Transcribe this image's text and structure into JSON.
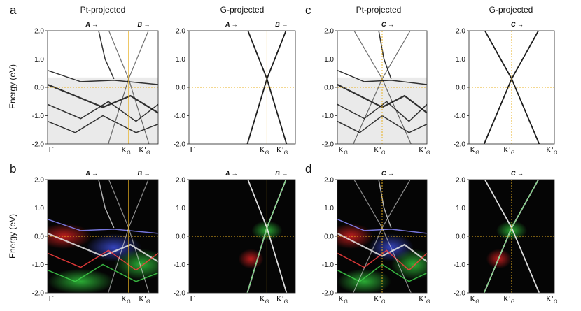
{
  "figure": {
    "rows": [
      {
        "letter_left": "a",
        "letter_right": "c",
        "background": "light"
      },
      {
        "letter_left": "b",
        "letter_right": "d",
        "background": "dark"
      }
    ],
    "column_titles": [
      "Pt-projected",
      "G-projected",
      "Pt-projected",
      "G-projected"
    ],
    "y_axis": {
      "label": "Energy (eV)",
      "ticks": [
        "2.0",
        "1.0",
        "0.0",
        "-1.0",
        "-2.0"
      ],
      "range": [
        -2.0,
        2.0
      ]
    },
    "left_pair": {
      "k_labels": [
        {
          "main": "Γ",
          "sub": ""
        },
        {
          "main": "K",
          "sub": "G"
        },
        {
          "main": "K'",
          "sub": "G"
        }
      ],
      "directions": [
        "A →",
        "B →"
      ]
    },
    "right_pair": {
      "k_labels": [
        {
          "main": "K",
          "sub": "G"
        },
        {
          "main": "K'",
          "sub": "G"
        },
        {
          "main": "K'",
          "sub": "G"
        }
      ],
      "directions": [
        "C →"
      ]
    },
    "guide_color": "#e8b020"
  }
}
